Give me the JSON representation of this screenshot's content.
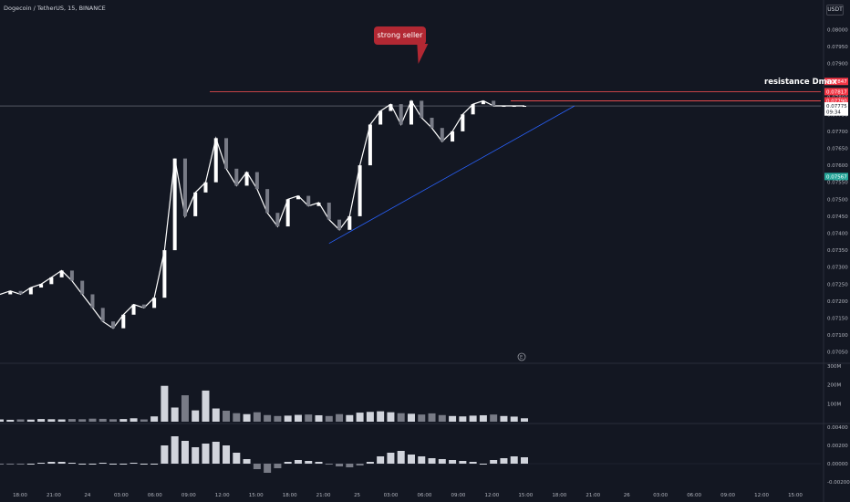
{
  "header": {
    "symbol": "Dogecoin / TetherUS",
    "interval": "15",
    "exchange": "BINANCE",
    "currency": "USDT"
  },
  "annotations": {
    "callout": "strong seller",
    "resistance": "resistance Dmax",
    "events_marker": "E"
  },
  "colors": {
    "background": "#131722",
    "candle_up": "#ffffff",
    "candle_down": "#787b86",
    "resistance_line": "#ff5252",
    "supply_zone": "#b22833",
    "target_zone": "#26a69a",
    "trend_line": "#2962ff",
    "ma_line": "#2962ff",
    "volume_ma": "#f23645"
  },
  "chart_data": [
    {
      "type": "line",
      "panel": "price",
      "title": "Dogecoin / TetherUS, 15, BINANCE",
      "xlabel": "",
      "ylabel": "",
      "ylim": [
        0.07025,
        0.0806
      ],
      "price_ticks": [
        "0.08000",
        "0.07950",
        "0.07900",
        "0.07850",
        "0.07800",
        "0.07750",
        "0.07700",
        "0.07650",
        "0.07600",
        "0.07550",
        "0.07500",
        "0.07450",
        "0.07400",
        "0.07350",
        "0.07300",
        "0.07250",
        "0.07200",
        "0.07150",
        "0.07100",
        "0.07050"
      ],
      "price_labels": [
        {
          "text": "0.07847",
          "value": 0.07847,
          "color": "#f23645"
        },
        {
          "text": "0.07817",
          "value": 0.07817,
          "color": "#f23645"
        },
        {
          "text": "0.07790",
          "value": 0.0779,
          "color": "#f23645"
        },
        {
          "text": "0.07775",
          "value": 0.07775,
          "color": "#ffffff"
        },
        {
          "text": "09:34",
          "value": 0.07757,
          "color": "#ffffff"
        },
        {
          "text": "0.07567",
          "value": 0.07567,
          "color": "#26a69a"
        }
      ],
      "time_labels": [
        "18:00",
        "21:00",
        "24",
        "03:00",
        "06:00",
        "09:00",
        "12:00",
        "15:00",
        "18:00",
        "21:00",
        "25",
        "03:00",
        "06:00",
        "09:00",
        "12:00",
        "15:00",
        "18:00",
        "21:00",
        "26",
        "03:00",
        "06:00",
        "09:00",
        "12:00",
        "15:00"
      ],
      "series": [
        {
          "name": "",
          "x": [
            0,
            3,
            6,
            9,
            12,
            15,
            18,
            21,
            24,
            27,
            30,
            33,
            36,
            39,
            42,
            45,
            48,
            51,
            54,
            57,
            60,
            63,
            66,
            69,
            72,
            75,
            78,
            81,
            84,
            87,
            90,
            93,
            96,
            99,
            102,
            105,
            108,
            111,
            114,
            117,
            120,
            123,
            126,
            129,
            132,
            135,
            138,
            141,
            144,
            147,
            150,
            153
          ],
          "values": [
            0.0722,
            0.0723,
            0.0722,
            0.0724,
            0.0725,
            0.0727,
            0.0729,
            0.0726,
            0.0722,
            0.0718,
            0.0714,
            0.0712,
            0.0716,
            0.0719,
            0.0718,
            0.0721,
            0.0735,
            0.0762,
            0.0745,
            0.0752,
            0.0755,
            0.0768,
            0.0759,
            0.0754,
            0.0758,
            0.0753,
            0.0746,
            0.0742,
            0.075,
            0.0751,
            0.0748,
            0.0749,
            0.0744,
            0.0741,
            0.0745,
            0.076,
            0.0772,
            0.0776,
            0.0778,
            0.0772,
            0.0779,
            0.0774,
            0.0771,
            0.0767,
            0.077,
            0.0775,
            0.0778,
            0.0779,
            0.07775,
            0.07775,
            0.07775,
            0.07775
          ]
        }
      ],
      "levels": [
        {
          "name": "resistance Dmax",
          "value": 0.07817
        },
        {
          "name": "",
          "value": 0.0779
        }
      ],
      "zones": [
        {
          "name": "strong seller",
          "x": [
            127,
            151
          ],
          "y": [
            0.0779,
            0.07847
          ]
        },
        {
          "name": "",
          "x": [
            141,
            151
          ],
          "y": [
            0.07567,
            0.07775
          ]
        }
      ]
    },
    {
      "type": "bar",
      "panel": "volume",
      "title": "",
      "xlabel": "",
      "ylabel": "",
      "ylim": [
        0,
        300
      ],
      "ticks": [
        "300M",
        "200M",
        "100M"
      ],
      "series": [
        {
          "name": "",
          "values": [
            12,
            10,
            12,
            11,
            14,
            13,
            12,
            14,
            13,
            16,
            15,
            13,
            14,
            18,
            12,
            28,
            190,
            75,
            140,
            60,
            165,
            70,
            58,
            45,
            40,
            50,
            35,
            30,
            32,
            36,
            38,
            34,
            30,
            40,
            35,
            48,
            52,
            55,
            50,
            45,
            42,
            38,
            44,
            35,
            30,
            28,
            32,
            34,
            38,
            30,
            27,
            18
          ]
        }
      ]
    },
    {
      "type": "bar",
      "panel": "oscillator",
      "title": "",
      "xlabel": "",
      "ylabel": "",
      "ylim": [
        -0.0022,
        0.0042
      ],
      "ticks": [
        "0.00400",
        "0.00200",
        "0.00000",
        "-0.00200"
      ],
      "series": [
        {
          "name": "",
          "values": [
            -0.0001,
            -0.0001,
            -0.0001,
            0.0,
            0.0001,
            0.0002,
            0.0002,
            0.0001,
            0.0,
            0.0,
            0.0001,
            0.0,
            0.0,
            0.0001,
            0.0,
            0.0,
            0.002,
            0.003,
            0.0025,
            0.0018,
            0.0022,
            0.0024,
            0.002,
            0.0012,
            0.0005,
            -0.0006,
            -0.001,
            -0.0005,
            0.0002,
            0.0004,
            0.0003,
            0.0002,
            -0.0001,
            -0.0003,
            -0.0004,
            -0.0002,
            0.0002,
            0.0008,
            0.0012,
            0.0014,
            0.001,
            0.0008,
            0.0006,
            0.0005,
            0.0004,
            0.0003,
            0.0002,
            0.0,
            0.0004,
            0.0006,
            0.0008,
            0.0007
          ]
        }
      ]
    }
  ]
}
